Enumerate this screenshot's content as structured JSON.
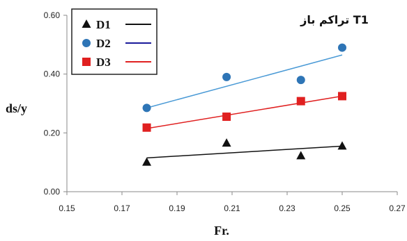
{
  "chart_data": {
    "type": "scatter",
    "title": "تراکم باز T1",
    "xlabel": "Fr.",
    "ylabel": "ds/y",
    "xlim": [
      0.15,
      0.27
    ],
    "ylim": [
      0.0,
      0.6
    ],
    "xticks": [
      "0.15",
      "0.17",
      "0.19",
      "0.21",
      "0.23",
      "0.25",
      "0.27"
    ],
    "yticks": [
      "0.00",
      "0.20",
      "0.40",
      "0.60"
    ],
    "xtick_values": [
      0.15,
      0.17,
      0.19,
      0.21,
      0.23,
      0.25,
      0.27
    ],
    "ytick_values": [
      0.0,
      0.2,
      0.4,
      0.6
    ],
    "grid": false,
    "legend_position": "top-left",
    "series": [
      {
        "name": "D1",
        "marker": "triangle",
        "marker_color": "#111111",
        "line_color": "#111111",
        "x": [
          0.179,
          0.208,
          0.235,
          0.25
        ],
        "y": [
          0.1,
          0.165,
          0.122,
          0.155
        ],
        "trend": [
          [
            0.179,
            0.115
          ],
          [
            0.25,
            0.155
          ]
        ]
      },
      {
        "name": "D2",
        "marker": "circle",
        "marker_color": "#2e75b6",
        "line_color": "#4a9ad6",
        "x": [
          0.179,
          0.208,
          0.235,
          0.25
        ],
        "y": [
          0.285,
          0.39,
          0.38,
          0.49
        ],
        "trend": [
          [
            0.179,
            0.285
          ],
          [
            0.25,
            0.465
          ]
        ]
      },
      {
        "name": "D3",
        "marker": "square",
        "marker_color": "#e02020",
        "line_color": "#e02020",
        "x": [
          0.179,
          0.208,
          0.235,
          0.25
        ],
        "y": [
          0.218,
          0.255,
          0.308,
          0.325
        ],
        "trend": [
          [
            0.179,
            0.215
          ],
          [
            0.25,
            0.325
          ]
        ]
      }
    ],
    "legend_line_colors": [
      "#111111",
      "#1a1a9a",
      "#e02020"
    ]
  }
}
